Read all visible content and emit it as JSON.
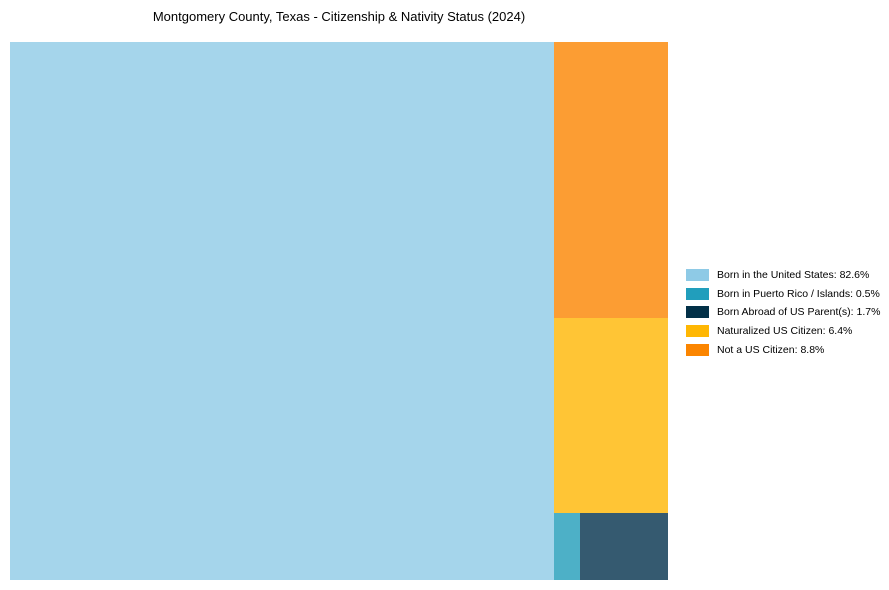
{
  "page": {
    "background": "#ffffff"
  },
  "chart_data": {
    "type": "treemap",
    "title": "Montgomery County, Texas - Citizenship & Nativity Status (2024)",
    "legend_position": "right",
    "unit": "percent",
    "series": [
      {
        "label": "Born in the United States",
        "value_pct": 82.6,
        "color": "#8ECAE6",
        "fill": "#A5D5EB"
      },
      {
        "label": "Born in Puerto Rico / Islands",
        "value_pct": 0.5,
        "color": "#219EBC",
        "fill": "#4DB0C7"
      },
      {
        "label": "Born Abroad of US Parent(s)",
        "value_pct": 1.7,
        "color": "#023047",
        "fill": "#355A70"
      },
      {
        "label": "Naturalized US Citizen",
        "value_pct": 6.4,
        "color": "#FFB703",
        "fill": "#FFC535"
      },
      {
        "label": "Not a US Citizen",
        "value_pct": 8.8,
        "color": "#FB8500",
        "fill": "#FC9D33"
      }
    ]
  },
  "legend": {
    "items": [
      {
        "label": "Born in the United States: 82.6%"
      },
      {
        "label": "Born in Puerto Rico / Islands: 0.5%"
      },
      {
        "label": "Born Abroad of US Parent(s): 1.7%"
      },
      {
        "label": "Naturalized US Citizen: 6.4%"
      },
      {
        "label": "Not a US Citizen: 8.8%"
      }
    ]
  }
}
